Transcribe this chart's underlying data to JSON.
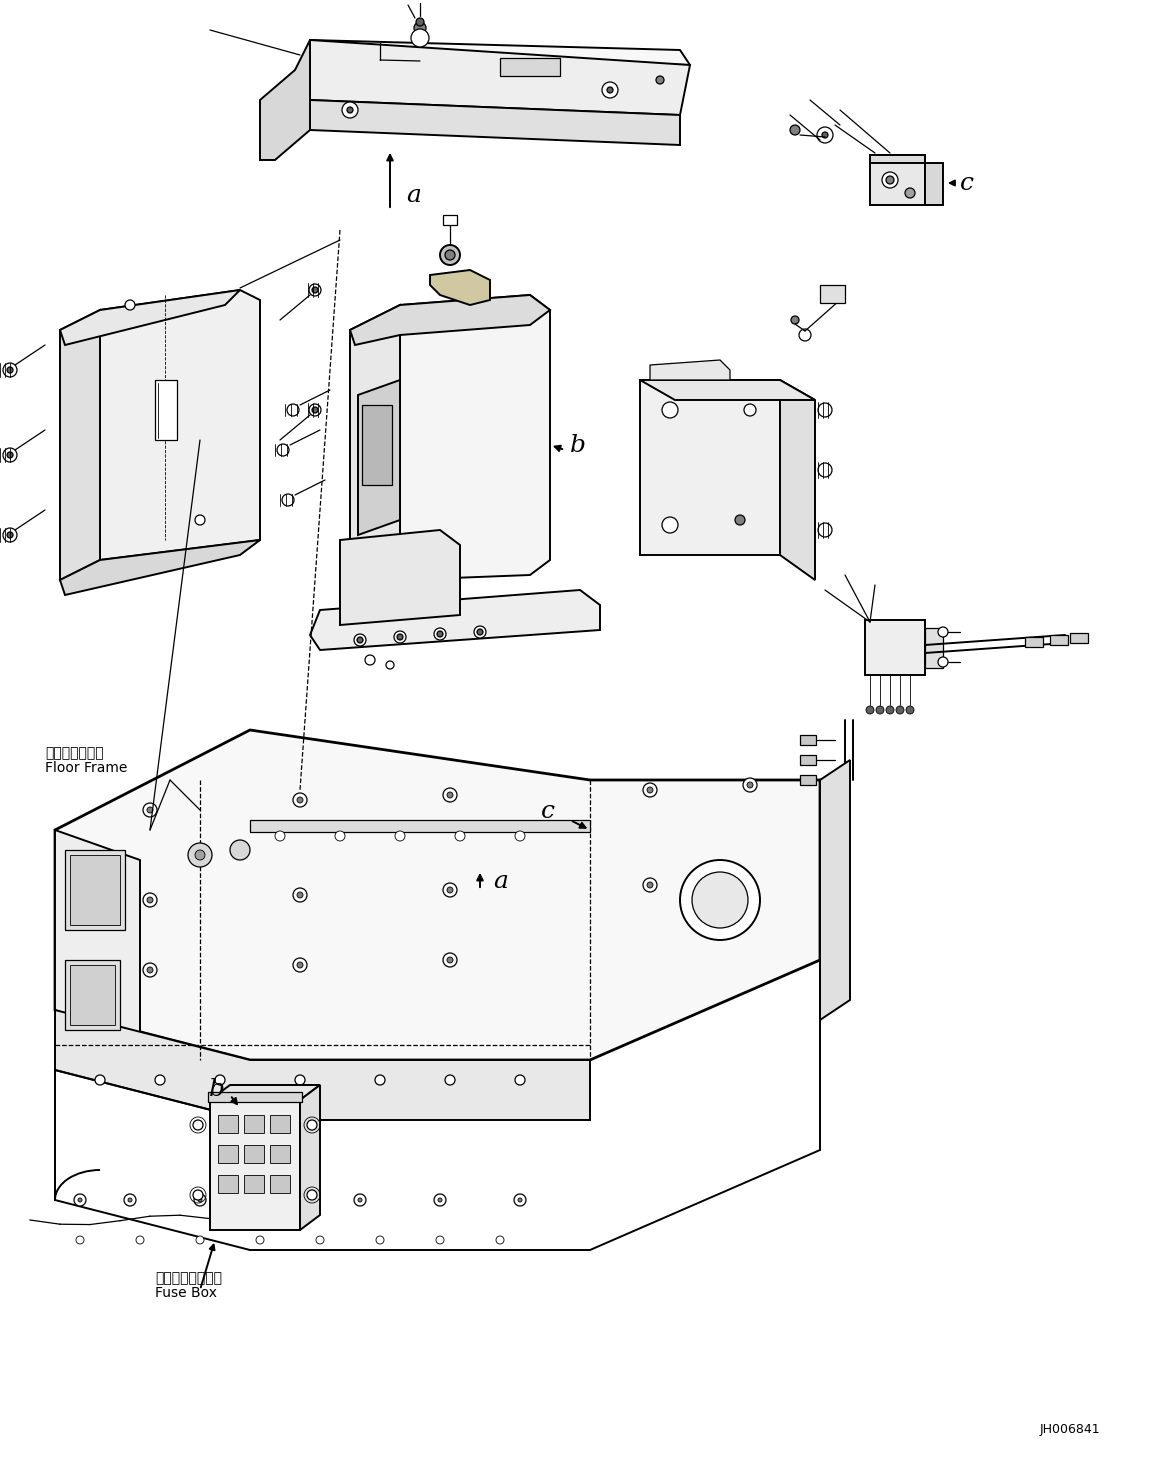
{
  "diagram_id": "JH006841",
  "background_color": "#ffffff",
  "line_color": "#000000",
  "labels": {
    "floor_frame_jp": "フロアフレーム",
    "floor_frame_en": "Floor Frame",
    "fuse_box_jp": "フューズボックス",
    "fuse_box_en": "Fuse Box",
    "a": "a",
    "b": "b",
    "c": "c"
  },
  "figsize": [
    11.63,
    14.66
  ],
  "dpi": 100
}
